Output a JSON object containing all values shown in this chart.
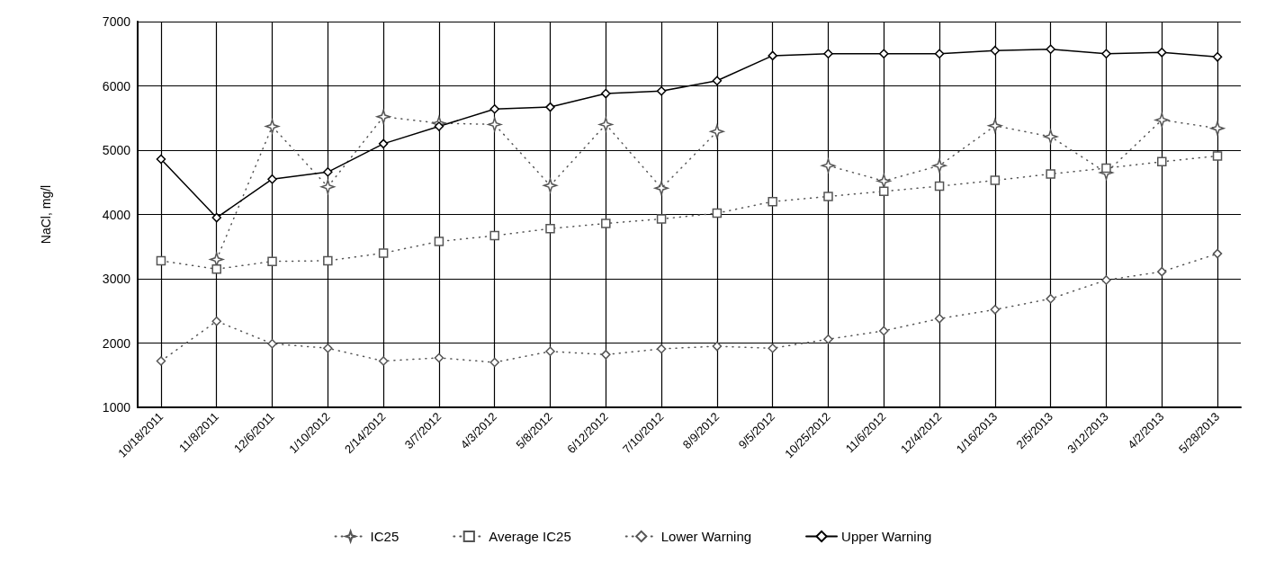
{
  "chart_data": {
    "type": "line",
    "ylabel": "NaCl, mg/l",
    "categories": [
      "10/18/2011",
      "11/8/2011",
      "12/6/2011",
      "1/10/2012",
      "2/14/2012",
      "3/7/2012",
      "4/3/2012",
      "5/8/2012",
      "6/12/2012",
      "7/10/2012",
      "8/9/2012",
      "9/5/2012",
      "10/25/2012",
      "11/6/2012",
      "12/4/2012",
      "1/16/2013",
      "2/5/2013",
      "3/12/2013",
      "4/2/2013",
      "5/28/2013"
    ],
    "series": [
      {
        "name": "IC25",
        "color": "#555555",
        "marker": "star",
        "line_style": "dotted",
        "values": [
          null,
          3300,
          5370,
          4430,
          5520,
          5420,
          5400,
          4450,
          5400,
          4410,
          5290,
          null,
          4760,
          4520,
          4760,
          5380,
          5210,
          4650,
          5470,
          5340
        ]
      },
      {
        "name": "Average IC25",
        "color": "#555555",
        "marker": "square",
        "line_style": "dotted",
        "values": [
          3280,
          3150,
          3270,
          3280,
          3400,
          3580,
          3670,
          3780,
          3860,
          3930,
          4020,
          4200,
          4280,
          4360,
          4440,
          4530,
          4630,
          4720,
          4820,
          4910
        ]
      },
      {
        "name": "Lower Warning",
        "color": "#555555",
        "marker": "diamond",
        "line_style": "dotted",
        "values": [
          1720,
          2340,
          1990,
          1920,
          1720,
          1770,
          1700,
          1870,
          1820,
          1910,
          1950,
          1920,
          2060,
          2190,
          2380,
          2520,
          2690,
          2980,
          3110,
          3390
        ]
      },
      {
        "name": "Upper Warning",
        "color": "#000000",
        "marker": "diamond",
        "line_style": "solid",
        "values": [
          4860,
          3950,
          4550,
          4660,
          5100,
          5370,
          5640,
          5670,
          5880,
          5920,
          6080,
          6470,
          6500,
          6500,
          6500,
          6550,
          6570,
          6500,
          6520,
          6450
        ]
      }
    ],
    "ylim": [
      1000,
      7000
    ],
    "yticks": [
      1000,
      2000,
      3000,
      4000,
      5000,
      6000,
      7000
    ],
    "grid": true,
    "legend": "bottom"
  }
}
